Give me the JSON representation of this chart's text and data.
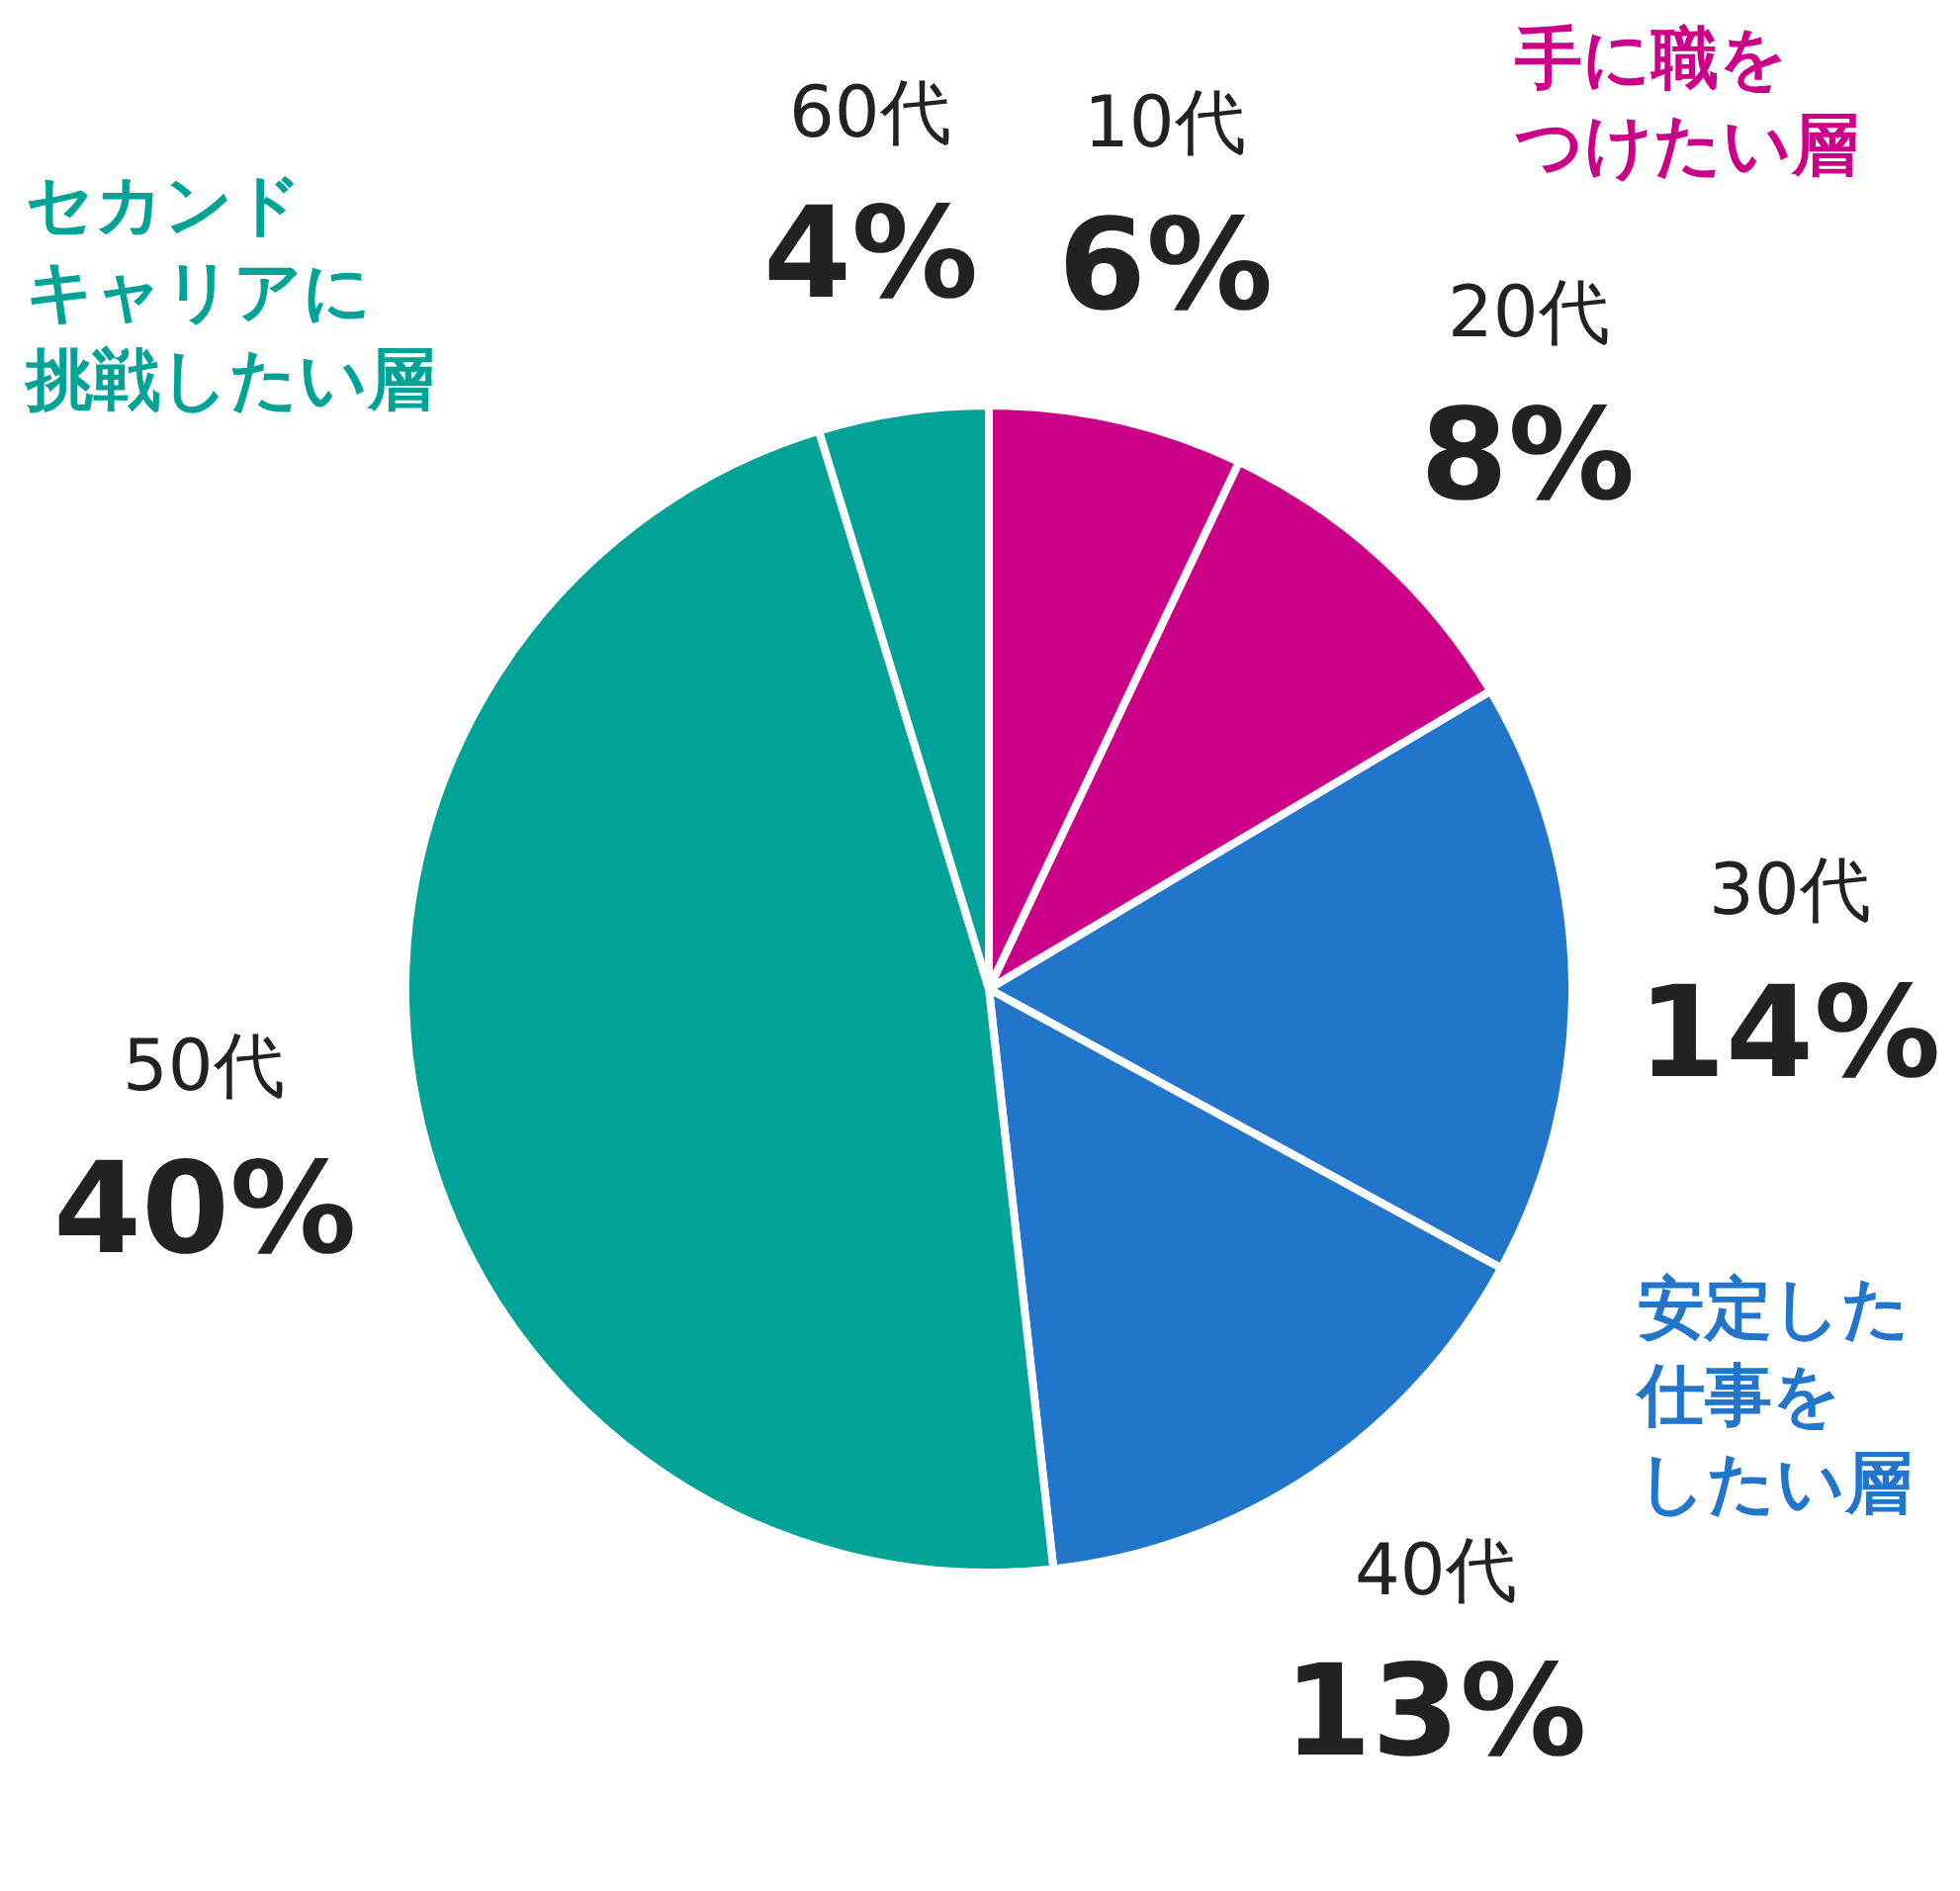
{
  "chart_data": {
    "type": "pie",
    "categories": [
      "10代",
      "20代",
      "30代",
      "40代",
      "50代",
      "60代"
    ],
    "values": [
      6,
      8,
      14,
      13,
      40,
      4
    ],
    "value_labels": [
      "6%",
      "8%",
      "14%",
      "13%",
      "40%",
      "4%"
    ],
    "colors": [
      "#cc0088",
      "#cc0088",
      "#2176cc",
      "#2176cc",
      "#00a396",
      "#00a396"
    ],
    "annotations": [
      "手に職をつけたい層",
      "安定した仕事をしたい層",
      "セカンドキャリアに挑戦したい層"
    ],
    "legend": false
  }
}
